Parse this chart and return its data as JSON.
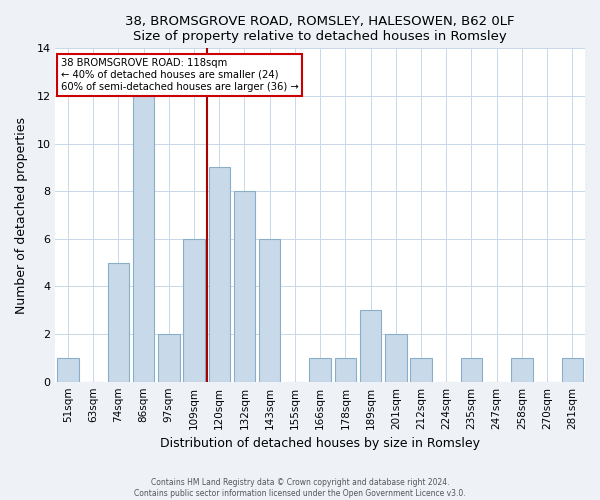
{
  "title": "38, BROMSGROVE ROAD, ROMSLEY, HALESOWEN, B62 0LF",
  "subtitle": "Size of property relative to detached houses in Romsley",
  "xlabel": "Distribution of detached houses by size in Romsley",
  "ylabel": "Number of detached properties",
  "bar_labels": [
    "51sqm",
    "63sqm",
    "74sqm",
    "86sqm",
    "97sqm",
    "109sqm",
    "120sqm",
    "132sqm",
    "143sqm",
    "155sqm",
    "166sqm",
    "178sqm",
    "189sqm",
    "201sqm",
    "212sqm",
    "224sqm",
    "235sqm",
    "247sqm",
    "258sqm",
    "270sqm",
    "281sqm"
  ],
  "bar_values": [
    1,
    0,
    5,
    12,
    2,
    6,
    9,
    8,
    6,
    0,
    1,
    1,
    3,
    2,
    1,
    0,
    1,
    0,
    1,
    0,
    1
  ],
  "bar_color": "#c8d9ea",
  "bar_edgecolor": "#89aec8",
  "vline_color": "#aa0000",
  "annotation_title": "38 BROMSGROVE ROAD: 118sqm",
  "annotation_line1": "← 40% of detached houses are smaller (24)",
  "annotation_line2": "60% of semi-detached houses are larger (36) →",
  "annotation_box_edgecolor": "#cc0000",
  "ylim": [
    0,
    14
  ],
  "yticks": [
    0,
    2,
    4,
    6,
    8,
    10,
    12,
    14
  ],
  "footer1": "Contains HM Land Registry data © Crown copyright and database right 2024.",
  "footer2": "Contains public sector information licensed under the Open Government Licence v3.0.",
  "bg_color": "#eef2f7",
  "plot_bg_color": "#ffffff",
  "grid_color": "#c8d8e8"
}
